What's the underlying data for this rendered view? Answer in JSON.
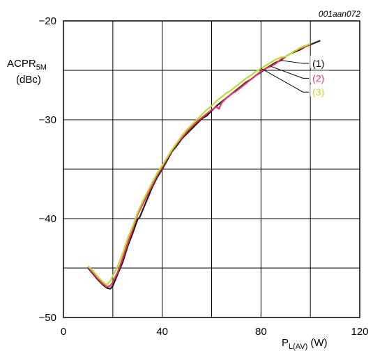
{
  "chart_data": {
    "type": "line",
    "identifier": "001aan072",
    "ylabel": {
      "main": "ACPR",
      "sub": "5M",
      "unit": "(dBc)"
    },
    "xlabel": {
      "main": "P",
      "sub": "L(AV)",
      "unit": "(W)"
    },
    "xlim": [
      0,
      120
    ],
    "ylim": [
      -50,
      -20
    ],
    "xticks": [
      0,
      40,
      80,
      120
    ],
    "yticks": [
      -20,
      -30,
      -40,
      -50
    ],
    "grid": true,
    "series": [
      {
        "name": "(1)",
        "color": "#231f20",
        "points": [
          [
            10,
            -45
          ],
          [
            12,
            -45.6
          ],
          [
            14,
            -46.2
          ],
          [
            16,
            -46.7
          ],
          [
            17.5,
            -47
          ],
          [
            19,
            -47.1
          ],
          [
            20,
            -46.8
          ],
          [
            21,
            -46.2
          ],
          [
            22,
            -45.6
          ],
          [
            24,
            -44.4
          ],
          [
            26,
            -42.8
          ],
          [
            28,
            -41.5
          ],
          [
            30,
            -40.1
          ],
          [
            31,
            -39.8
          ],
          [
            32,
            -39.2
          ],
          [
            34,
            -38
          ],
          [
            36,
            -36.8
          ],
          [
            38,
            -35.8
          ],
          [
            40,
            -35
          ],
          [
            42,
            -34.1
          ],
          [
            44,
            -33.2
          ],
          [
            46,
            -32.6
          ],
          [
            48,
            -31.9
          ],
          [
            50,
            -31.4
          ],
          [
            52,
            -30.9
          ],
          [
            54,
            -30.4
          ],
          [
            56,
            -29.9
          ],
          [
            58,
            -29.6
          ],
          [
            60,
            -29.1
          ],
          [
            62,
            -28.6
          ],
          [
            64,
            -28.2
          ],
          [
            66,
            -27.8
          ],
          [
            68,
            -27.4
          ],
          [
            70,
            -27
          ],
          [
            72,
            -26.6
          ],
          [
            74,
            -26.2
          ],
          [
            76,
            -25.9
          ],
          [
            78,
            -25.5
          ],
          [
            80,
            -25.2
          ],
          [
            82,
            -24.8
          ],
          [
            84,
            -24.5
          ],
          [
            86,
            -24.2
          ],
          [
            88,
            -24
          ],
          [
            90,
            -23.6
          ],
          [
            92,
            -23.3
          ],
          [
            94,
            -23.1
          ],
          [
            96,
            -22.9
          ],
          [
            98,
            -22.6
          ],
          [
            100,
            -22.4
          ],
          [
            102,
            -22.2
          ],
          [
            104,
            -22
          ]
        ]
      },
      {
        "name": "(2)",
        "color": "#e8306b",
        "points": [
          [
            10,
            -44.9
          ],
          [
            12,
            -45.5
          ],
          [
            14,
            -46.1
          ],
          [
            16,
            -46.6
          ],
          [
            17.5,
            -46.9
          ],
          [
            19,
            -46.8
          ],
          [
            20,
            -46.4
          ],
          [
            22,
            -45.4
          ],
          [
            24,
            -44
          ],
          [
            26,
            -42.5
          ],
          [
            28,
            -41.1
          ],
          [
            30,
            -39.6
          ],
          [
            32,
            -38.6
          ],
          [
            34,
            -37.6
          ],
          [
            36,
            -36.6
          ],
          [
            38,
            -35.6
          ],
          [
            40,
            -34.8
          ],
          [
            42,
            -33.9
          ],
          [
            44,
            -33.1
          ],
          [
            46,
            -32.4
          ],
          [
            48,
            -31.8
          ],
          [
            50,
            -31.2
          ],
          [
            52,
            -30.7
          ],
          [
            54,
            -30.2
          ],
          [
            56,
            -29.8
          ],
          [
            58,
            -29.4
          ],
          [
            60,
            -29
          ],
          [
            62,
            -28.7
          ],
          [
            63,
            -28.9
          ],
          [
            64,
            -28.3
          ],
          [
            66,
            -27.8
          ],
          [
            68,
            -27.4
          ],
          [
            70,
            -27.1
          ],
          [
            72,
            -26.7
          ],
          [
            74,
            -26.3
          ],
          [
            76,
            -25.9
          ],
          [
            78,
            -25.5
          ],
          [
            80,
            -25.1
          ],
          [
            82,
            -24.8
          ],
          [
            84,
            -24.6
          ],
          [
            86,
            -24.3
          ],
          [
            88,
            -23.9
          ],
          [
            90,
            -23.6
          ],
          [
            92,
            -23.3
          ],
          [
            94,
            -23
          ],
          [
            96,
            -22.8
          ],
          [
            98,
            -22.6
          ],
          [
            100,
            -22.4
          ]
        ]
      },
      {
        "name": "(3)",
        "color": "#c4d92e",
        "points": [
          [
            10,
            -44.8
          ],
          [
            12,
            -45.3
          ],
          [
            14,
            -45.9
          ],
          [
            16,
            -46.4
          ],
          [
            17.5,
            -46.7
          ],
          [
            19,
            -46.3
          ],
          [
            20,
            -45.8
          ],
          [
            22,
            -44.8
          ],
          [
            24,
            -43.5
          ],
          [
            26,
            -42
          ],
          [
            28,
            -40.8
          ],
          [
            30,
            -39.4
          ],
          [
            32,
            -38.3
          ],
          [
            34,
            -37.3
          ],
          [
            36,
            -36.3
          ],
          [
            38,
            -35.4
          ],
          [
            40,
            -34.6
          ],
          [
            42,
            -33.8
          ],
          [
            44,
            -33
          ],
          [
            46,
            -32.3
          ],
          [
            48,
            -31.6
          ],
          [
            50,
            -31
          ],
          [
            52,
            -30.5
          ],
          [
            54,
            -30
          ],
          [
            56,
            -29.5
          ],
          [
            58,
            -29
          ],
          [
            60,
            -28.6
          ],
          [
            62,
            -28.1
          ],
          [
            64,
            -27.7
          ],
          [
            66,
            -27.3
          ],
          [
            68,
            -27
          ],
          [
            70,
            -26.6
          ],
          [
            72,
            -26.2
          ],
          [
            74,
            -25.8
          ],
          [
            76,
            -25.5
          ],
          [
            78,
            -25.1
          ],
          [
            80,
            -24.8
          ],
          [
            82,
            -24.5
          ],
          [
            84,
            -24.2
          ],
          [
            86,
            -23.9
          ],
          [
            88,
            -23.7
          ],
          [
            90,
            -23.6
          ],
          [
            92,
            -23.3
          ],
          [
            94,
            -23
          ],
          [
            96,
            -22.7
          ],
          [
            98,
            -22.5
          ],
          [
            100,
            -22.3
          ]
        ]
      }
    ]
  }
}
